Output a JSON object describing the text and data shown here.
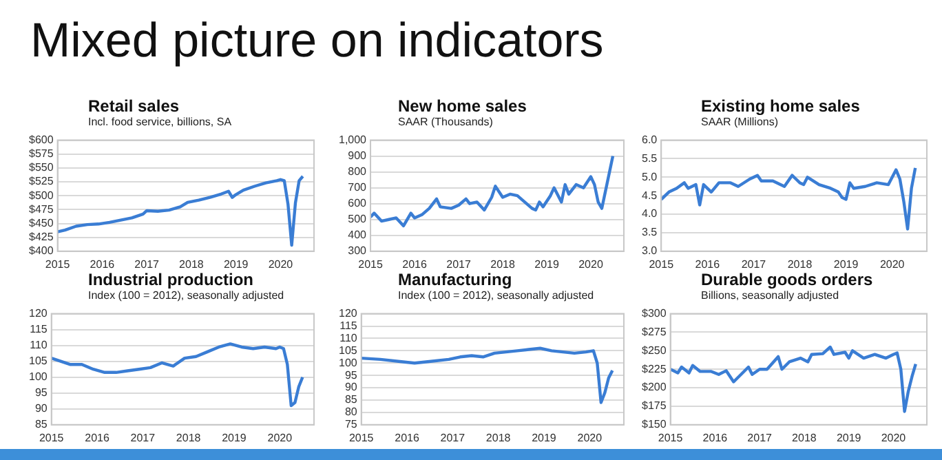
{
  "chart_data": [
    {
      "type": "line",
      "title": "Retail sales",
      "subtitle": "Incl. food service, billions, SA",
      "annotations": [
        "Mixed picture on indicators"
      ],
      "grid": "y",
      "legend": false,
      "marker": "none",
      "xlim": [
        "2015-01",
        "2020-10"
      ],
      "xticks": [
        "2015",
        "2016",
        "2017",
        "2018",
        "2019",
        "2020"
      ],
      "ylim": [
        400,
        600
      ],
      "yticks": [
        {
          "value": 400,
          "label": "$400"
        },
        {
          "value": 425,
          "label": "$425"
        },
        {
          "value": 450,
          "label": "$450"
        },
        {
          "value": 475,
          "label": "$475"
        },
        {
          "value": 500,
          "label": "$500"
        },
        {
          "value": 525,
          "label": "$525"
        },
        {
          "value": 550,
          "label": "$550"
        },
        {
          "value": 575,
          "label": "$575"
        },
        {
          "value": 600,
          "label": "$600"
        }
      ],
      "series": [
        {
          "color": "#3a7dd4",
          "x": [
            "2015-01",
            "2015-03",
            "2015-06",
            "2015-09",
            "2015-12",
            "2016-03",
            "2016-06",
            "2016-09",
            "2016-12",
            "2017-01",
            "2017-04",
            "2017-07",
            "2017-10",
            "2017-12",
            "2018-03",
            "2018-06",
            "2018-09",
            "2018-11",
            "2018-12",
            "2019-01",
            "2019-03",
            "2019-06",
            "2019-09",
            "2019-12",
            "2020-01",
            "2020-02",
            "2020-03",
            "2020-04",
            "2020-05",
            "2020-06",
            "2020-07"
          ],
          "values": [
            435,
            438,
            445,
            448,
            449,
            452,
            456,
            460,
            467,
            473,
            472,
            474,
            480,
            488,
            492,
            497,
            503,
            508,
            497,
            502,
            510,
            517,
            523,
            527,
            529,
            527,
            485,
            411,
            487,
            527,
            535
          ]
        }
      ]
    },
    {
      "type": "line",
      "title": "New home sales",
      "subtitle": "SAAR (Thousands)",
      "grid": "y",
      "legend": false,
      "marker": "none",
      "xlim": [
        "2015-01",
        "2020-10"
      ],
      "xticks": [
        "2015",
        "2016",
        "2017",
        "2018",
        "2019",
        "2020"
      ],
      "ylim": [
        300,
        1000
      ],
      "yticks": [
        300,
        400,
        500,
        600,
        700,
        800,
        900,
        {
          "value": 1000,
          "label": "1,000"
        }
      ],
      "series": [
        {
          "color": "#3a7dd4",
          "x": [
            "2015-01",
            "2015-02",
            "2015-04",
            "2015-06",
            "2015-08",
            "2015-10",
            "2015-12",
            "2016-01",
            "2016-03",
            "2016-05",
            "2016-07",
            "2016-08",
            "2016-11",
            "2017-01",
            "2017-03",
            "2017-04",
            "2017-06",
            "2017-08",
            "2017-10",
            "2017-11",
            "2018-01",
            "2018-03",
            "2018-05",
            "2018-07",
            "2018-09",
            "2018-10",
            "2018-11",
            "2018-12",
            "2019-02",
            "2019-03",
            "2019-05",
            "2019-06",
            "2019-07",
            "2019-09",
            "2019-11",
            "2020-01",
            "2020-02",
            "2020-03",
            "2020-04",
            "2020-05",
            "2020-06",
            "2020-07"
          ],
          "values": [
            515,
            540,
            490,
            500,
            510,
            460,
            540,
            510,
            530,
            570,
            630,
            580,
            570,
            590,
            630,
            600,
            610,
            560,
            640,
            710,
            640,
            660,
            650,
            610,
            570,
            560,
            610,
            580,
            650,
            700,
            610,
            720,
            660,
            720,
            700,
            770,
            720,
            610,
            570,
            680,
            790,
            900
          ]
        }
      ]
    },
    {
      "type": "line",
      "title": "Existing home sales",
      "subtitle": "SAAR (Millions)",
      "grid": "y",
      "legend": false,
      "marker": "none",
      "xlim": [
        "2015-01",
        "2020-10"
      ],
      "xticks": [
        "2015",
        "2016",
        "2017",
        "2018",
        "2019",
        "2020"
      ],
      "ylim": [
        3,
        6
      ],
      "yticks": [
        {
          "value": 3,
          "label": "3.0"
        },
        3.5,
        {
          "value": 4,
          "label": "4.0"
        },
        4.5,
        {
          "value": 5,
          "label": "5.0"
        },
        5.5,
        {
          "value": 6,
          "label": "6.0"
        }
      ],
      "series": [
        {
          "color": "#3a7dd4",
          "x": [
            "2015-01",
            "2015-03",
            "2015-05",
            "2015-07",
            "2015-08",
            "2015-10",
            "2015-11",
            "2015-12",
            "2016-02",
            "2016-04",
            "2016-07",
            "2016-09",
            "2016-12",
            "2017-02",
            "2017-03",
            "2017-06",
            "2017-09",
            "2017-11",
            "2017-12",
            "2018-01",
            "2018-02",
            "2018-03",
            "2018-06",
            "2018-09",
            "2018-11",
            "2018-12",
            "2019-01",
            "2019-02",
            "2019-03",
            "2019-06",
            "2019-09",
            "2019-12",
            "2020-01",
            "2020-02",
            "2020-03",
            "2020-04",
            "2020-05",
            "2020-06",
            "2020-07"
          ],
          "values": [
            4.4,
            4.6,
            4.7,
            4.85,
            4.7,
            4.8,
            4.25,
            4.8,
            4.6,
            4.85,
            4.85,
            4.75,
            4.95,
            5.05,
            4.9,
            4.9,
            4.75,
            5.05,
            4.95,
            4.85,
            4.8,
            5.0,
            4.8,
            4.7,
            4.6,
            4.45,
            4.4,
            4.85,
            4.7,
            4.75,
            4.85,
            4.8,
            5.0,
            5.2,
            4.95,
            4.35,
            3.6,
            4.7,
            5.25
          ]
        }
      ]
    },
    {
      "type": "line",
      "title": "Industrial production",
      "subtitle": "Index (100 = 2012), seasonally adjusted",
      "grid": "y",
      "legend": false,
      "marker": "none",
      "xlim": [
        "2015-01",
        "2020-10"
      ],
      "xticks": [
        "2015",
        "2016",
        "2017",
        "2018",
        "2019",
        "2020"
      ],
      "ylim": [
        85,
        120
      ],
      "yticks": [
        85,
        90,
        95,
        100,
        105,
        110,
        115,
        120
      ],
      "series": [
        {
          "color": "#3a7dd4",
          "x": [
            "2015-01",
            "2015-06",
            "2015-09",
            "2015-12",
            "2016-03",
            "2016-06",
            "2016-09",
            "2016-12",
            "2017-03",
            "2017-06",
            "2017-09",
            "2017-12",
            "2018-03",
            "2018-06",
            "2018-09",
            "2018-12",
            "2019-03",
            "2019-06",
            "2019-09",
            "2019-12",
            "2020-01",
            "2020-02",
            "2020-03",
            "2020-04",
            "2020-05",
            "2020-06",
            "2020-07"
          ],
          "values": [
            106,
            104,
            104,
            102.5,
            101.5,
            101.5,
            102,
            102.5,
            103,
            104.5,
            103.5,
            106,
            106.5,
            108,
            109.5,
            110.5,
            109.5,
            109,
            109.5,
            109,
            109.5,
            109,
            104,
            91,
            92,
            97,
            100
          ]
        }
      ]
    },
    {
      "type": "line",
      "title": "Manufacturing",
      "subtitle": "Index (100 = 2012), seasonally adjusted",
      "grid": "y",
      "legend": false,
      "marker": "none",
      "xlim": [
        "2015-01",
        "2020-10"
      ],
      "xticks": [
        "2015",
        "2016",
        "2017",
        "2018",
        "2019",
        "2020"
      ],
      "ylim": [
        75,
        120
      ],
      "yticks": [
        75,
        80,
        85,
        90,
        95,
        100,
        105,
        110,
        115,
        120
      ],
      "series": [
        {
          "color": "#3a7dd4",
          "x": [
            "2015-01",
            "2015-06",
            "2015-12",
            "2016-03",
            "2016-06",
            "2016-12",
            "2017-03",
            "2017-06",
            "2017-09",
            "2017-12",
            "2018-03",
            "2018-06",
            "2018-09",
            "2018-12",
            "2019-03",
            "2019-06",
            "2019-09",
            "2019-12",
            "2020-02",
            "2020-03",
            "2020-04",
            "2020-05",
            "2020-06",
            "2020-07"
          ],
          "values": [
            102,
            101.5,
            100.5,
            100,
            100.5,
            101.5,
            102.5,
            103,
            102.5,
            104,
            104.5,
            105,
            105.5,
            106,
            105,
            104.5,
            104,
            104.5,
            105,
            100,
            84,
            88,
            94,
            97
          ]
        }
      ]
    },
    {
      "type": "line",
      "title": "Durable goods orders",
      "subtitle": "Billions, seasonally adjusted",
      "grid": "y",
      "legend": false,
      "marker": "none",
      "xlim": [
        "2015-01",
        "2020-10"
      ],
      "xticks": [
        "2015",
        "2016",
        "2017",
        "2018",
        "2019",
        "2020"
      ],
      "ylim": [
        150,
        300
      ],
      "yticks": [
        {
          "value": 150,
          "label": "$150"
        },
        {
          "value": 175,
          "label": "$175"
        },
        {
          "value": 200,
          "label": "$200"
        },
        {
          "value": 225,
          "label": "$225"
        },
        {
          "value": 250,
          "label": "$250"
        },
        {
          "value": 275,
          "label": "$275"
        },
        {
          "value": 300,
          "label": "$300"
        }
      ],
      "series": [
        {
          "color": "#3a7dd4",
          "x": [
            "2015-01",
            "2015-03",
            "2015-04",
            "2015-06",
            "2015-07",
            "2015-09",
            "2015-12",
            "2016-02",
            "2016-04",
            "2016-06",
            "2016-08",
            "2016-10",
            "2016-11",
            "2017-01",
            "2017-03",
            "2017-06",
            "2017-07",
            "2017-09",
            "2017-12",
            "2018-02",
            "2018-03",
            "2018-06",
            "2018-08",
            "2018-09",
            "2018-12",
            "2019-01",
            "2019-02",
            "2019-05",
            "2019-08",
            "2019-11",
            "2020-01",
            "2020-02",
            "2020-03",
            "2020-04",
            "2020-05",
            "2020-06",
            "2020-07"
          ],
          "values": [
            225,
            220,
            228,
            220,
            230,
            222,
            222,
            218,
            223,
            208,
            218,
            228,
            218,
            225,
            225,
            242,
            225,
            235,
            240,
            235,
            245,
            246,
            255,
            245,
            248,
            240,
            250,
            240,
            245,
            240,
            245,
            247,
            225,
            168,
            195,
            215,
            232
          ]
        }
      ]
    }
  ]
}
